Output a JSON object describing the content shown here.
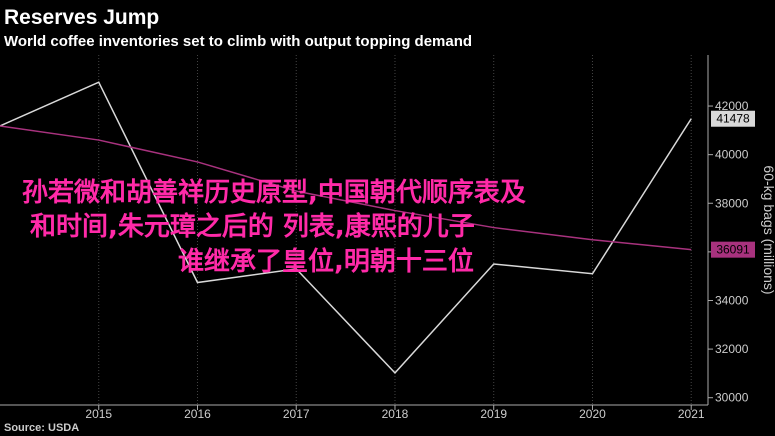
{
  "chart_data": {
    "type": "line",
    "title": "Reserves Jump",
    "subtitle": "World coffee inventories set to climb with output topping demand",
    "y_axis_label": "60-kg bags (millions)",
    "source": "Source: USDA",
    "x": [
      2014,
      2015,
      2016,
      2017,
      2018,
      2019,
      2020,
      2021
    ],
    "series": [
      {
        "color": "#d9d9d9",
        "values": [
          41180,
          42980,
          34740,
          35300,
          31020,
          35500,
          35100,
          41478
        ]
      },
      {
        "color": "#a8327e",
        "values": [
          41180,
          40600,
          39700,
          38500,
          37700,
          37000,
          36500,
          36091
        ]
      }
    ],
    "xlim": [
      2014,
      2021.17
    ],
    "xticks": [
      2015,
      2016,
      2017,
      2018,
      2019,
      2020,
      2021
    ],
    "ylim": [
      29700,
      44100
    ],
    "yticks": [
      30000,
      32000,
      34000,
      36000,
      38000,
      40000,
      42000
    ],
    "grid": "x",
    "overlay_text": [
      "孙若微和胡善祥历史原型,中国朝代顺序表及",
      "和时间,朱元璋之后的 列表,康熙的儿子",
      "谁继承了皇位,明朝十三位"
    ]
  }
}
